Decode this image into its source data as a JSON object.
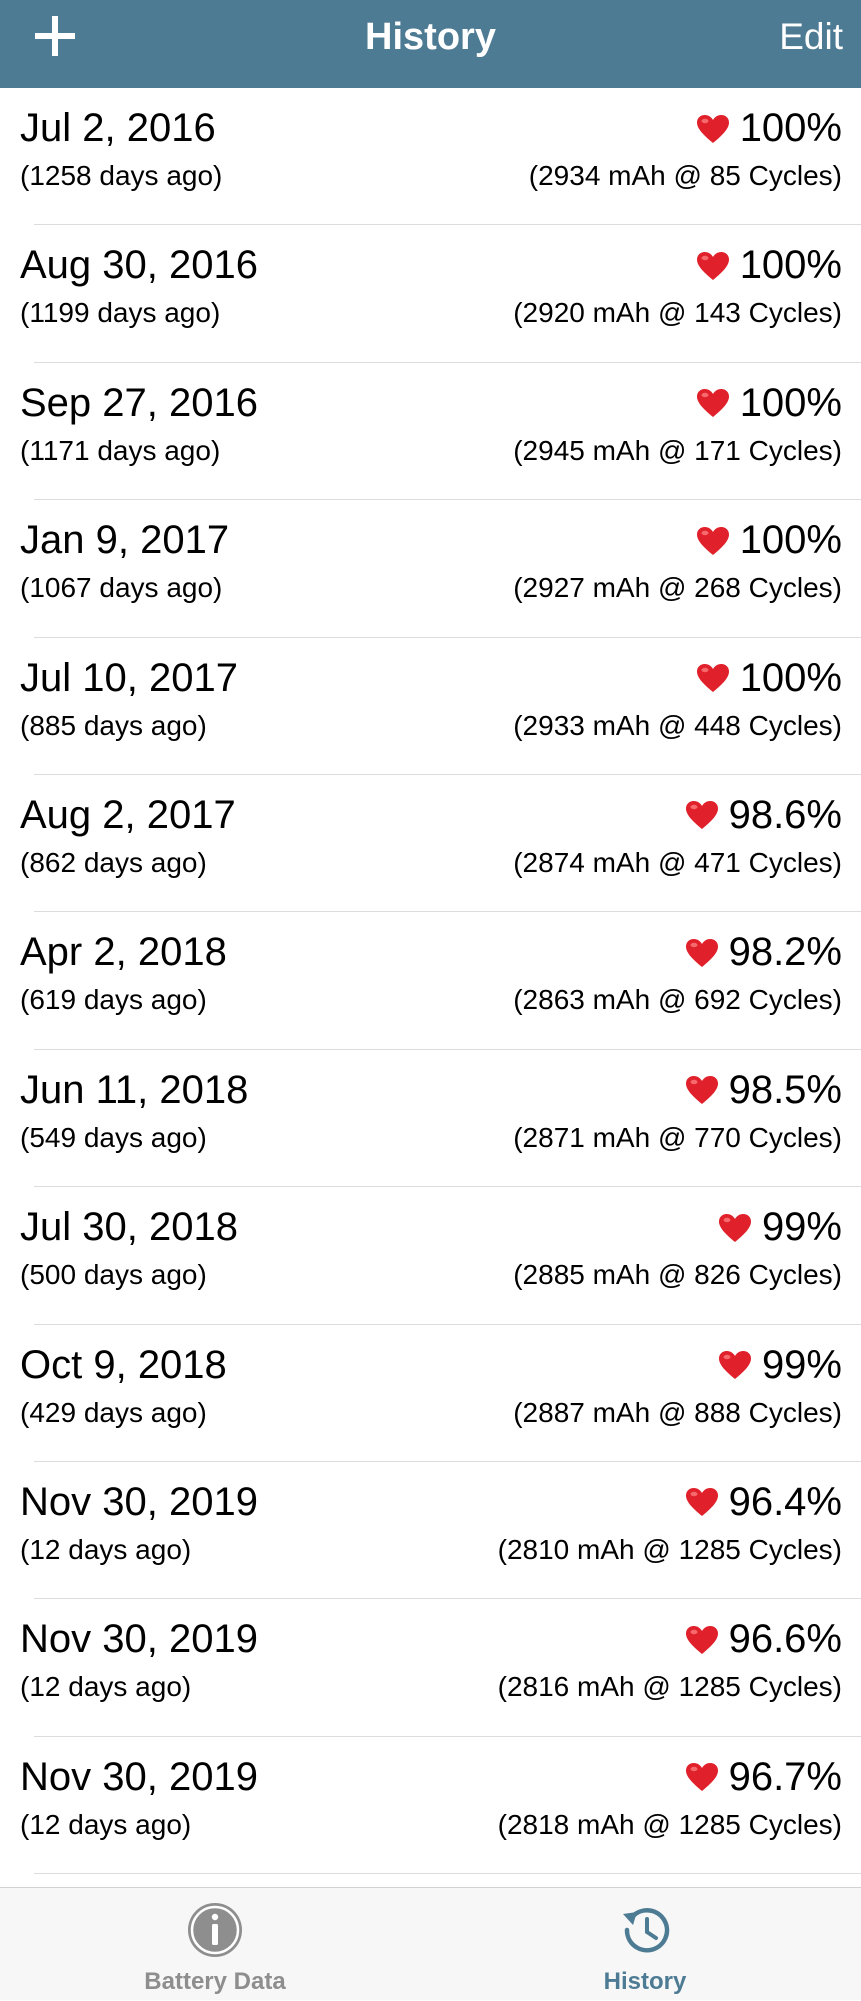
{
  "navbar": {
    "title": "History",
    "edit_label": "Edit",
    "add_icon": "plus-icon",
    "background_color": "#4e7b94"
  },
  "entries": [
    {
      "date": "Jul 2, 2016",
      "ago": "(1258 days ago)",
      "health": "100%",
      "detail": "(2934 mAh @ 85 Cycles)"
    },
    {
      "date": "Aug 30, 2016",
      "ago": "(1199 days ago)",
      "health": "100%",
      "detail": "(2920 mAh @ 143 Cycles)"
    },
    {
      "date": "Sep 27, 2016",
      "ago": "(1171 days ago)",
      "health": "100%",
      "detail": "(2945 mAh @ 171 Cycles)"
    },
    {
      "date": "Jan 9, 2017",
      "ago": "(1067 days ago)",
      "health": "100%",
      "detail": "(2927 mAh @ 268 Cycles)"
    },
    {
      "date": "Jul 10, 2017",
      "ago": "(885 days ago)",
      "health": "100%",
      "detail": "(2933 mAh @ 448 Cycles)"
    },
    {
      "date": "Aug 2, 2017",
      "ago": "(862 days ago)",
      "health": "98.6%",
      "detail": "(2874 mAh @ 471 Cycles)"
    },
    {
      "date": "Apr 2, 2018",
      "ago": "(619 days ago)",
      "health": "98.2%",
      "detail": "(2863 mAh @ 692 Cycles)"
    },
    {
      "date": "Jun 11, 2018",
      "ago": "(549 days ago)",
      "health": "98.5%",
      "detail": "(2871 mAh @ 770 Cycles)"
    },
    {
      "date": "Jul 30, 2018",
      "ago": "(500 days ago)",
      "health": "99%",
      "detail": "(2885 mAh @ 826 Cycles)"
    },
    {
      "date": "Oct 9, 2018",
      "ago": "(429 days ago)",
      "health": "99%",
      "detail": "(2887 mAh @ 888 Cycles)"
    },
    {
      "date": "Nov 30, 2019",
      "ago": "(12 days ago)",
      "health": "96.4%",
      "detail": "(2810 mAh @ 1285 Cycles)"
    },
    {
      "date": "Nov 30, 2019",
      "ago": "(12 days ago)",
      "health": "96.6%",
      "detail": "(2816 mAh @ 1285 Cycles)"
    },
    {
      "date": "Nov 30, 2019",
      "ago": "(12 days ago)",
      "health": "96.7%",
      "detail": "(2818 mAh @ 1285 Cycles)"
    }
  ],
  "tabbar": {
    "tabs": [
      {
        "label": "Battery Data",
        "icon": "info-icon",
        "selected": false
      },
      {
        "label": "History",
        "icon": "history-clock-icon",
        "selected": true
      }
    ]
  },
  "colors": {
    "accent": "#4e7b94",
    "heart": "#e0202a",
    "tab_inactive": "#8e8e8e"
  }
}
